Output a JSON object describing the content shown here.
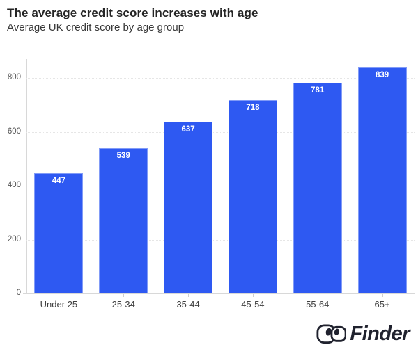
{
  "header": {
    "title": "The average credit score increases with age",
    "subtitle": "Average UK credit score by age group"
  },
  "chart_data": {
    "type": "bar",
    "title": "The average credit score increases with age",
    "subtitle": "Average UK credit score by age group",
    "categories": [
      "Under 25",
      "25-34",
      "35-44",
      "45-54",
      "55-64",
      "65+"
    ],
    "values": [
      447,
      539,
      637,
      718,
      781,
      839
    ],
    "xlabel": "",
    "ylabel": "",
    "ylim": [
      0,
      870
    ],
    "yticks": [
      0,
      200,
      400,
      600,
      800
    ],
    "grid": true,
    "legend": "none",
    "bar_color": "#2e59f2",
    "value_label_color": "#ffffff"
  },
  "footer": {
    "brand": "Finder",
    "logo_color": "#20222e"
  }
}
